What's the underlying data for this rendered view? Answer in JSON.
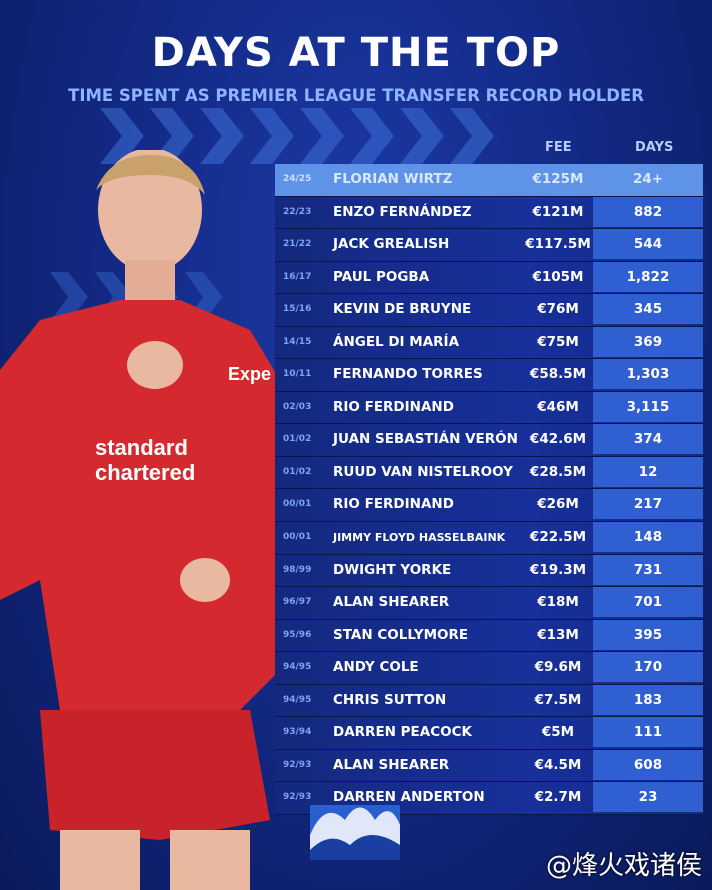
{
  "header": {
    "title": "DAYS AT THE TOP",
    "subtitle": "TIME SPENT AS PREMIER LEAGUE TRANSFER RECORD HOLDER"
  },
  "columns": {
    "fee": "FEE",
    "days": "DAYS"
  },
  "rows": [
    {
      "season": "24/25",
      "name": "FLORIAN WIRTZ",
      "fee": "€125M",
      "days": "24+"
    },
    {
      "season": "22/23",
      "name": "ENZO FERNÁNDEZ",
      "fee": "€121M",
      "days": "882"
    },
    {
      "season": "21/22",
      "name": "JACK GREALISH",
      "fee": "€117.5M",
      "days": "544"
    },
    {
      "season": "16/17",
      "name": "PAUL POGBA",
      "fee": "€105M",
      "days": "1,822"
    },
    {
      "season": "15/16",
      "name": "KEVIN DE BRUYNE",
      "fee": "€76M",
      "days": "345"
    },
    {
      "season": "14/15",
      "name": "ÁNGEL DI MARÍA",
      "fee": "€75M",
      "days": "369"
    },
    {
      "season": "10/11",
      "name": "FERNANDO TORRES",
      "fee": "€58.5M",
      "days": "1,303"
    },
    {
      "season": "02/03",
      "name": "RIO FERDINAND",
      "fee": "€46M",
      "days": "3,115"
    },
    {
      "season": "01/02",
      "name": "JUAN SEBASTIÁN VERÓN",
      "fee": "€42.6M",
      "days": "374"
    },
    {
      "season": "01/02",
      "name": "RUUD VAN NISTELROOY",
      "fee": "€28.5M",
      "days": "12"
    },
    {
      "season": "00/01",
      "name": "RIO FERDINAND",
      "fee": "€26M",
      "days": "217"
    },
    {
      "season": "00/01",
      "name": "JIMMY FLOYD HASSELBAINK",
      "fee": "€22.5M",
      "days": "148"
    },
    {
      "season": "98/99",
      "name": "DWIGHT YORKE",
      "fee": "€19.3M",
      "days": "731"
    },
    {
      "season": "96/97",
      "name": "ALAN SHEARER",
      "fee": "€18M",
      "days": "701"
    },
    {
      "season": "95/96",
      "name": "STAN COLLYMORE",
      "fee": "€13M",
      "days": "395"
    },
    {
      "season": "94/95",
      "name": "ANDY COLE",
      "fee": "€9.6M",
      "days": "170"
    },
    {
      "season": "94/95",
      "name": "CHRIS SUTTON",
      "fee": "€7.5M",
      "days": "183"
    },
    {
      "season": "93/94",
      "name": "DARREN PEACOCK",
      "fee": "€5M",
      "days": "111"
    },
    {
      "season": "92/93",
      "name": "ALAN SHEARER",
      "fee": "€4.5M",
      "days": "608"
    },
    {
      "season": "92/93",
      "name": "DARREN ANDERTON",
      "fee": "€2.7M",
      "days": "23"
    }
  ],
  "player_shirt": {
    "sponsor": "standard chartered",
    "sleeve": "Expe"
  },
  "watermark": "@烽火戏诸侯",
  "colors": {
    "highlight_row": "#5f93e8",
    "days_cell": "#2f5fd0",
    "background": "#132a86",
    "shirt": "#d42a2f"
  }
}
